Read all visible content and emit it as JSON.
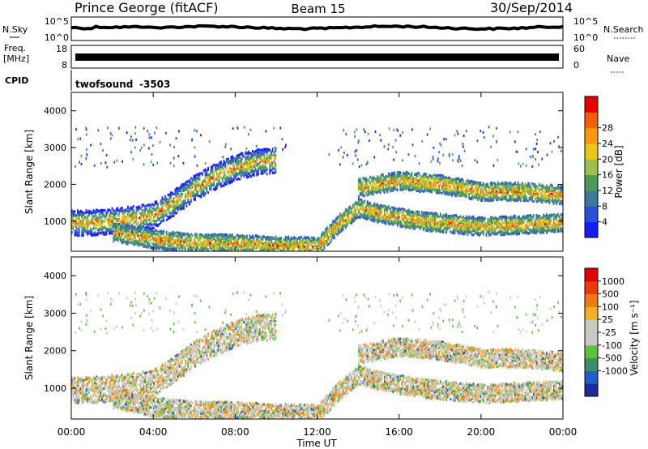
{
  "header": {
    "station": "Prince George (fitACF)",
    "beam": "Beam 15",
    "date": "30/Sep/2014"
  },
  "strip_nsky": {
    "left_label": "N.Sky",
    "right_label": "N.Search",
    "left_ticks": [
      "10^5",
      "10^0"
    ],
    "right_ticks": [
      "10^5",
      "10^0"
    ]
  },
  "strip_freq": {
    "left_label_1": "Freq.",
    "left_label_2": "[MHz]",
    "right_label": "Nave",
    "left_ticks": [
      "18",
      "8"
    ],
    "right_ticks": [
      "60",
      "0"
    ]
  },
  "cpid": {
    "label": "CPID",
    "program": "twofsound",
    "value": "-3503"
  },
  "x_axis": {
    "label": "Time UT",
    "ticks": [
      "00:00",
      "04:00",
      "08:00",
      "12:00",
      "16:00",
      "20:00",
      "00:00"
    ]
  },
  "chart_data": [
    {
      "type": "heatmap",
      "quantity": "power",
      "ylabel": "Slant Range [km]",
      "x_range_hours": [
        0,
        24
      ],
      "ylim": [
        180,
        4500
      ],
      "y_ticks": [
        1000,
        2000,
        3000,
        4000
      ],
      "colorbar": {
        "label": "Power [dB]",
        "ticks": [
          "4",
          "8",
          "12",
          "16",
          "20",
          "24",
          "28"
        ],
        "stops": [
          "#1a1aff",
          "#2b4fd6",
          "#3a7a9a",
          "#4b9b56",
          "#9cc04a",
          "#e8c814",
          "#f59a0f",
          "#f0600c",
          "#e60000"
        ]
      },
      "scatter_bands": [
        {
          "desc": "main echo band",
          "points": [
            [
              0,
              950
            ],
            [
              1,
              950
            ],
            [
              2,
              1000
            ],
            [
              3,
              1050
            ],
            [
              4,
              1150
            ],
            [
              5,
              1500
            ],
            [
              6,
              1900
            ],
            [
              7,
              2200
            ],
            [
              8,
              2450
            ],
            [
              9,
              2600
            ],
            [
              10,
              2650
            ]
          ]
        },
        {
          "desc": "lower band",
          "points": [
            [
              2,
              700
            ],
            [
              3,
              600
            ],
            [
              4,
              500
            ],
            [
              5,
              450
            ],
            [
              6,
              400
            ],
            [
              8,
              380
            ],
            [
              10,
              330
            ],
            [
              12,
              300
            ]
          ]
        },
        {
          "desc": "evening band",
          "points": [
            [
              12,
              300
            ],
            [
              13,
              900
            ],
            [
              14,
              1350
            ],
            [
              15,
              1200
            ],
            [
              16,
              1100
            ],
            [
              17,
              1000
            ],
            [
              18,
              950
            ],
            [
              20,
              850
            ],
            [
              22,
              900
            ],
            [
              24,
              950
            ]
          ]
        },
        {
          "desc": "upper evening band",
          "points": [
            [
              14,
              1900
            ],
            [
              16,
              2100
            ],
            [
              18,
              2000
            ],
            [
              20,
              1800
            ],
            [
              22,
              1800
            ],
            [
              24,
              1700
            ]
          ]
        }
      ]
    },
    {
      "type": "heatmap",
      "quantity": "velocity",
      "ylabel": "Slant Range [km]",
      "x_range_hours": [
        0,
        24
      ],
      "ylim": [
        180,
        4500
      ],
      "y_ticks": [
        1000,
        2000,
        3000,
        4000
      ],
      "colorbar": {
        "label": "Velocity [m s⁻¹]",
        "ticks": [
          "1000",
          "500",
          "100",
          "25",
          "-25",
          "-100",
          "-500",
          "-1000"
        ],
        "stops": [
          "#1b2a9e",
          "#1f5fbf",
          "#3f8c6b",
          "#5bc43a",
          "#c8c8c4",
          "#c8c8c4",
          "#f0b028",
          "#f07a10",
          "#ec3a0a",
          "#e00000"
        ]
      }
    }
  ],
  "colors": {
    "frame": "#000000",
    "background": "#ffffff",
    "ground_scatter": "#c6c6c0"
  }
}
